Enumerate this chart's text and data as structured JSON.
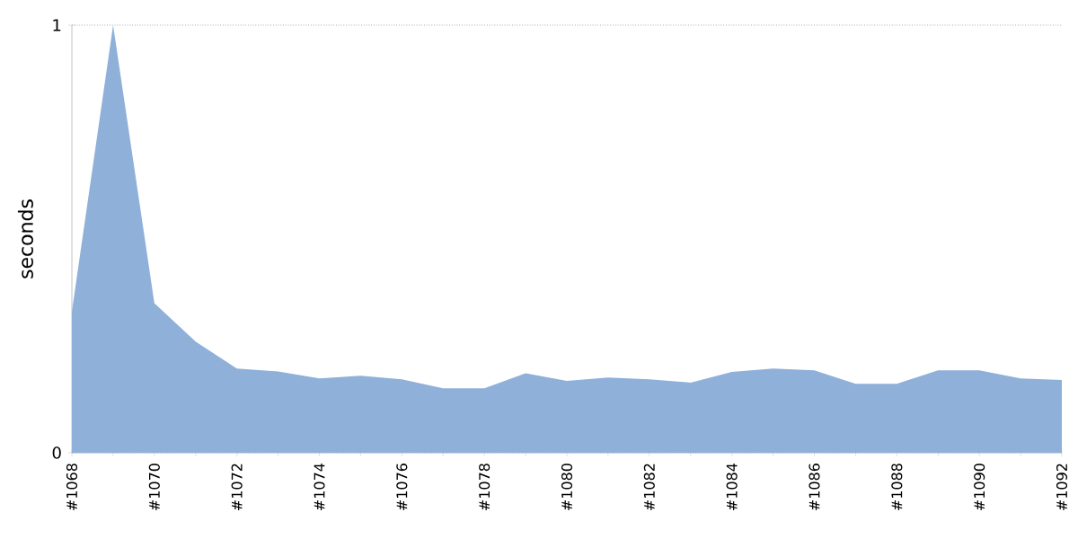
{
  "chart_data": {
    "type": "area",
    "ylabel": "seconds",
    "categories": [
      "#1068",
      null,
      "#1070",
      null,
      "#1072",
      null,
      "#1074",
      null,
      "#1076",
      null,
      "#1078",
      null,
      "#1080",
      null,
      "#1082",
      null,
      "#1084",
      null,
      "#1086",
      null,
      "#1088",
      null,
      "#1090",
      null,
      "#1092"
    ],
    "values": [
      0.33,
      1,
      0.35,
      0.26,
      0.197,
      0.19,
      0.174,
      0.18,
      0.172,
      0.151,
      0.151,
      0.186,
      0.168,
      0.176,
      0.172,
      0.164,
      0.189,
      0.197,
      0.193,
      0.161,
      0.161,
      0.193,
      0.193,
      0.174,
      0.17
    ],
    "color": "#8fb0d9",
    "ylim": [
      0,
      1
    ],
    "yticks": [
      0,
      1
    ],
    "grid": "y"
  }
}
